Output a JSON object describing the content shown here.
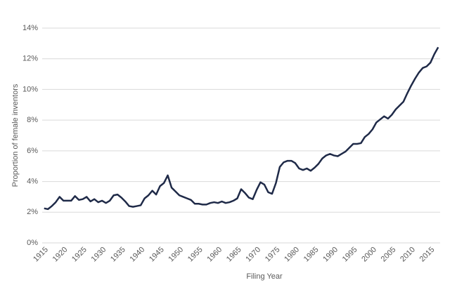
{
  "chart_data": {
    "type": "line",
    "x_label": "Filing Year",
    "y_label": "Proportion of female inventors",
    "x": [
      1915,
      1916,
      1917,
      1918,
      1919,
      1920,
      1921,
      1922,
      1923,
      1924,
      1925,
      1926,
      1927,
      1928,
      1929,
      1930,
      1931,
      1932,
      1933,
      1934,
      1935,
      1936,
      1937,
      1938,
      1939,
      1940,
      1941,
      1942,
      1943,
      1944,
      1945,
      1946,
      1947,
      1948,
      1949,
      1950,
      1951,
      1952,
      1953,
      1954,
      1955,
      1956,
      1957,
      1958,
      1959,
      1960,
      1961,
      1962,
      1963,
      1964,
      1965,
      1966,
      1967,
      1968,
      1969,
      1970,
      1971,
      1972,
      1973,
      1974,
      1975,
      1976,
      1977,
      1978,
      1979,
      1980,
      1981,
      1982,
      1983,
      1984,
      1985,
      1986,
      1987,
      1988,
      1989,
      1990,
      1991,
      1992,
      1993,
      1994,
      1995,
      1996,
      1997,
      1998,
      1999,
      2000,
      2001,
      2002,
      2003,
      2004,
      2005,
      2006,
      2007,
      2008,
      2009,
      2010,
      2011,
      2012,
      2013,
      2014,
      2015,
      2016,
      2017
    ],
    "series": [
      {
        "color": "#1f2a48",
        "values": [
          2.25,
          2.2,
          2.4,
          2.65,
          3.0,
          2.75,
          2.75,
          2.75,
          3.05,
          2.8,
          2.85,
          3.0,
          2.7,
          2.85,
          2.65,
          2.75,
          2.6,
          2.75,
          3.1,
          3.15,
          2.95,
          2.7,
          2.4,
          2.35,
          2.4,
          2.45,
          2.9,
          3.1,
          3.4,
          3.15,
          3.7,
          3.9,
          4.4,
          3.6,
          3.35,
          3.1,
          3.0,
          2.9,
          2.8,
          2.55,
          2.55,
          2.5,
          2.5,
          2.6,
          2.65,
          2.6,
          2.7,
          2.6,
          2.65,
          2.75,
          2.9,
          3.5,
          3.25,
          2.95,
          2.85,
          3.45,
          3.95,
          3.8,
          3.3,
          3.2,
          3.9,
          4.95,
          5.25,
          5.35,
          5.35,
          5.2,
          4.85,
          4.75,
          4.85,
          4.7,
          4.9,
          5.15,
          5.5,
          5.7,
          5.8,
          5.7,
          5.65,
          5.8,
          5.95,
          6.2,
          6.45,
          6.45,
          6.5,
          6.9,
          7.1,
          7.4,
          7.85,
          8.05,
          8.25,
          8.1,
          8.35,
          8.7,
          8.95,
          9.2,
          9.75,
          10.25,
          10.7,
          11.1,
          11.4,
          11.5,
          11.75,
          12.3,
          12.75
        ]
      }
    ],
    "xlim": [
      1914.5,
      2017.5
    ],
    "xticks": [
      1915,
      1920,
      1925,
      1930,
      1935,
      1940,
      1945,
      1950,
      1955,
      1960,
      1965,
      1970,
      1975,
      1980,
      1985,
      1990,
      1995,
      2000,
      2005,
      2010,
      2015
    ],
    "ylim": [
      0,
      14
    ],
    "yticks": [
      {
        "value": 0,
        "label": "0%"
      },
      {
        "value": 2,
        "label": "2%"
      },
      {
        "value": 4,
        "label": "4%"
      },
      {
        "value": 6,
        "label": "6%"
      },
      {
        "value": 8,
        "label": "8%"
      },
      {
        "value": 10,
        "label": "10%"
      },
      {
        "value": 12,
        "label": "12%"
      },
      {
        "value": 14,
        "label": "14%"
      }
    ],
    "grid": true
  }
}
